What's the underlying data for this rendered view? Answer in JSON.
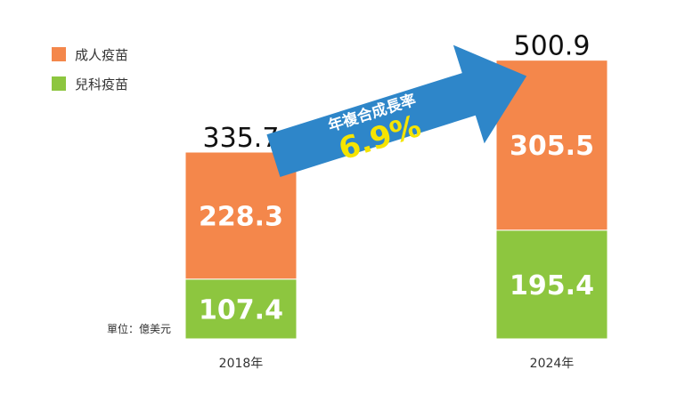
{
  "chart_data": {
    "type": "bar",
    "stacked": true,
    "categories": [
      "2018年",
      "2024年"
    ],
    "series": [
      {
        "name": "兒科疫苗",
        "values": [
          107.4,
          195.4
        ],
        "color": "#8dc63f"
      },
      {
        "name": "成人疫苗",
        "values": [
          228.3,
          305.5
        ],
        "color": "#f4874b"
      }
    ],
    "totals": [
      "335.7",
      "500.9"
    ],
    "segment_labels": [
      [
        "107.4",
        "228.3"
      ],
      [
        "195.4",
        "305.5"
      ]
    ],
    "legend": {
      "position": "top-left",
      "items": [
        "成人疫苗",
        "兒科疫苗"
      ]
    },
    "unit": "單位：億美元",
    "annotation": {
      "text": "年複合成長率",
      "value": "6.9%",
      "color": "#2e86c9"
    },
    "ylim": [
      0,
      520
    ],
    "grid": false
  }
}
